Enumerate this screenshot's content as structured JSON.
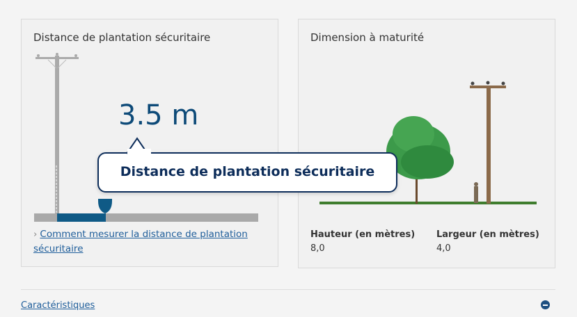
{
  "safe_distance_card": {
    "title": "Distance de plantation sécuritaire",
    "value": "3.5 m",
    "link_prefix": "›",
    "link": "Comment mesurer la distance de plantation sécuritaire"
  },
  "tooltip": {
    "text": "Distance de plantation sécuritaire"
  },
  "maturity_card": {
    "title": "Dimension à maturité",
    "height_label": "Hauteur (en mètres)",
    "height_value": "8,0",
    "width_label": "Largeur (en mètres)",
    "width_value": "4,0"
  },
  "section": {
    "label": "Caractéristiques",
    "icon": "minus-circle-icon"
  },
  "colors": {
    "accent": "#0d4a78",
    "tooltip_border": "#0d2d5a",
    "link": "#1e5d9a"
  }
}
